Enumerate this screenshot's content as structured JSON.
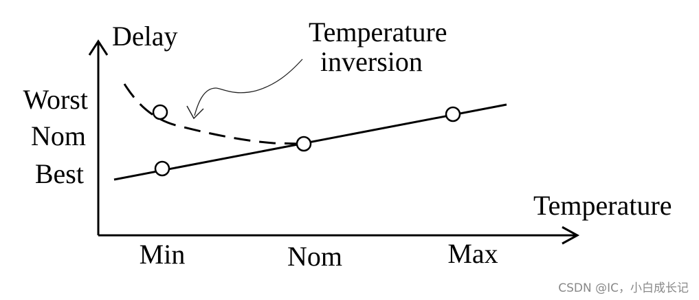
{
  "axes": {
    "y_label": "Delay",
    "x_label": "Temperature"
  },
  "y_levels": [
    "Worst",
    "Nom",
    "Best"
  ],
  "x_levels": [
    "Min",
    "Nom",
    "Max"
  ],
  "annotation": {
    "line1": "Temperature",
    "line2": "inversion"
  },
  "watermark": "CSDN @IC，小白成长记"
}
